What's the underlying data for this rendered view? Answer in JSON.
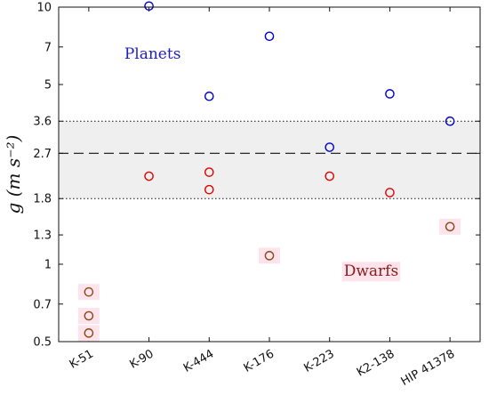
{
  "chart_data": {
    "type": "scatter",
    "ylabel": "g (m s⁻²)",
    "y_scale": "log",
    "ylim": [
      0.5,
      10
    ],
    "y_ticks": [
      0.5,
      0.7,
      1,
      1.3,
      1.8,
      2.7,
      3.6,
      5,
      7,
      10
    ],
    "y_tick_labels": [
      "0.5",
      "0.7",
      "1",
      "1.3",
      "1.8",
      "2.7",
      "3.6",
      "5",
      "7",
      "10"
    ],
    "categories": [
      "K-51",
      "K-90",
      "K-444",
      "K-176",
      "K-223",
      "K2-138",
      "HIP 41378"
    ],
    "band": {
      "low": 1.8,
      "high": 3.6,
      "fill": "#efefef"
    },
    "reference_line": {
      "y": 2.7,
      "style": "dashed"
    },
    "band_lines": [
      1.8,
      3.6
    ],
    "grid": false,
    "annotations": {
      "planets": {
        "text": "Planets",
        "color": "#1f1fbf"
      },
      "dwarfs": {
        "text": "Dwarfs",
        "color": "#8b1a1a",
        "highlight": "#fde4ec"
      }
    },
    "series": [
      {
        "color": "#0000cc",
        "points": [
          {
            "category": "K-90",
            "y": 10.1
          },
          {
            "category": "K-444",
            "y": 4.5
          },
          {
            "category": "K-176",
            "y": 7.7
          },
          {
            "category": "K-223",
            "y": 2.85
          },
          {
            "category": "K2-138",
            "y": 4.6
          },
          {
            "category": "HIP 41378",
            "y": 3.6
          }
        ]
      },
      {
        "color": "#dd0000",
        "points": [
          {
            "category": "K-90",
            "y": 2.2
          },
          {
            "category": "K-444",
            "y": 2.28
          },
          {
            "category": "K-444",
            "y": 1.95
          },
          {
            "category": "K-223",
            "y": 2.2
          },
          {
            "category": "K2-138",
            "y": 1.9
          }
        ]
      },
      {
        "color": "#8b4513",
        "highlight": "#fde4ec",
        "points": [
          {
            "category": "K-51",
            "y": 0.78
          },
          {
            "category": "K-51",
            "y": 0.63
          },
          {
            "category": "K-51",
            "y": 0.54
          },
          {
            "category": "K-176",
            "y": 1.08
          },
          {
            "category": "HIP 41378",
            "y": 1.4
          }
        ]
      }
    ]
  }
}
